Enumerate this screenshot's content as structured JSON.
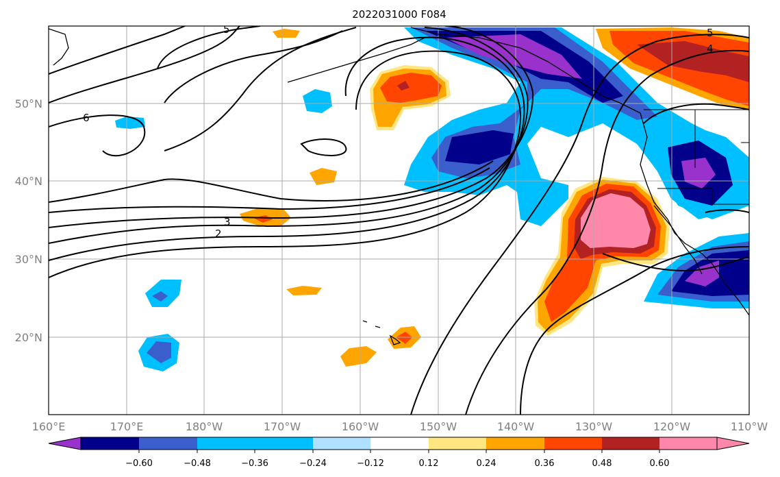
{
  "title": "2022031000 F084",
  "lon_labels": [
    "160°E",
    "170°E",
    "180°W",
    "170°W",
    "160°W",
    "150°W",
    "140°W",
    "130°W",
    "120°W",
    "110°W"
  ],
  "lat_labels": [
    "50°N",
    "40°N",
    "30°N",
    "20°N"
  ],
  "contour_labels": [
    "5",
    "5",
    "4",
    "6",
    "3",
    "2"
  ],
  "colorbar": {
    "tick_labels": [
      "−0.60",
      "−0.48",
      "−0.36",
      "−0.24",
      "−0.12",
      "0.12",
      "0.24",
      "0.36",
      "0.48",
      "0.60"
    ],
    "colors": [
      "#9932cc",
      "#00008b",
      "#3a5fcd",
      "#00bfff",
      "#b0e0ff",
      "#ffffff",
      "#ffe680",
      "#ffa500",
      "#ff4500",
      "#b22222",
      "#ff88aa"
    ]
  }
}
